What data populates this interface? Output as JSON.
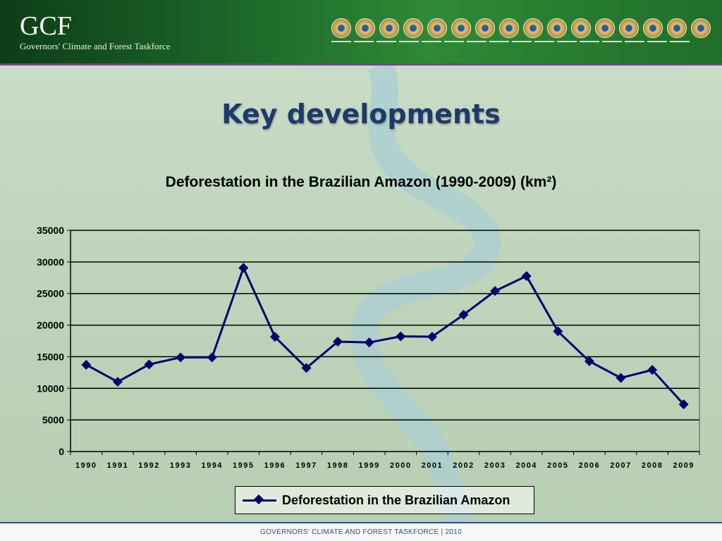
{
  "header": {
    "brand": "GCF",
    "brand_subtitle": "Governors' Climate and Forest Taskforce",
    "seals": [
      "seal-1",
      "seal-2",
      "seal-3",
      "seal-4",
      "seal-5",
      "seal-6",
      "seal-7",
      "seal-8",
      "seal-9",
      "seal-10",
      "seal-11",
      "seal-12",
      "seal-13",
      "seal-14",
      "seal-15",
      "seal-16"
    ]
  },
  "slide": {
    "title": "Key developments"
  },
  "chart_data": {
    "type": "line",
    "title": "Deforestation in the Brazilian Amazon (1990-2009) (km²)",
    "xlabel": "",
    "ylabel": "",
    "categories": [
      "1990",
      "1991",
      "1992",
      "1993",
      "1994",
      "1995",
      "1996",
      "1997",
      "1998",
      "1999",
      "2000",
      "2001",
      "2002",
      "2003",
      "2004",
      "2005",
      "2006",
      "2007",
      "2008",
      "2009"
    ],
    "series": [
      {
        "name": "Deforestation in the Brazilian Amazon",
        "values": [
          13730,
          11030,
          13786,
          14896,
          14896,
          29059,
          18161,
          13227,
          17383,
          17259,
          18226,
          18165,
          21651,
          25396,
          27772,
          19014,
          14286,
          11651,
          12911,
          7464
        ],
        "color": "#00006e"
      }
    ],
    "ylim": [
      0,
      35000
    ],
    "yticks": [
      0,
      5000,
      10000,
      15000,
      20000,
      25000,
      30000,
      35000
    ],
    "grid": true,
    "legend_position": "bottom"
  },
  "footer": {
    "text": "GOVERNORS' CLIMATE AND FOREST TASKFORCE | 2010"
  }
}
